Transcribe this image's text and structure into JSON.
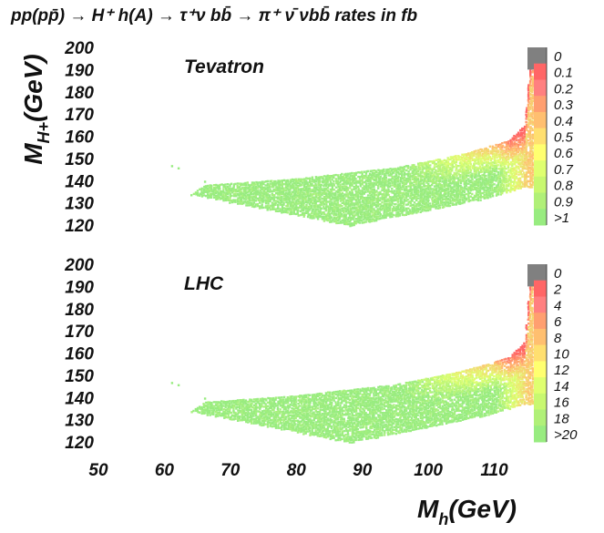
{
  "header": {
    "title": "pp(pp̄) → H⁺ h(A) → τ⁺ν bb̄ → π⁺ ν̄ νbb̄ rates in fb"
  },
  "colors": {
    "overflow": "#808080",
    "scale": [
      "#ff6666",
      "#ff8080",
      "#ff9f70",
      "#ffbf70",
      "#ffdf70",
      "#ffff70",
      "#dfff70",
      "#c8f870",
      "#b0f078",
      "#98ec80"
    ]
  },
  "chart_data": [
    {
      "type": "scatter",
      "name": "Tevatron",
      "x_label": "",
      "y_label": "M_H+(GeV)",
      "xlim": [
        50,
        116
      ],
      "ylim": [
        120,
        200
      ],
      "yticks": [
        "200",
        "190",
        "180",
        "170",
        "160",
        "150",
        "140",
        "130",
        "120"
      ],
      "legend_labels": [
        "0",
        "0.1",
        "0.2",
        "0.3",
        "0.4",
        "0.5",
        "0.6",
        "0.7",
        "0.8",
        "0.9",
        ">1"
      ],
      "region": {
        "lower_edge": [
          [
            88,
            120
          ],
          [
            100,
            127
          ],
          [
            110,
            133
          ],
          [
            114,
            137
          ]
        ],
        "upper_edge": [
          [
            66,
            138
          ],
          [
            80,
            141
          ],
          [
            95,
            146
          ],
          [
            105,
            152
          ],
          [
            112,
            158
          ],
          [
            114.5,
            165
          ],
          [
            115.5,
            200
          ]
        ],
        "left_tip": [
          64,
          134
        ],
        "right_edge_x": 116
      }
    },
    {
      "type": "scatter",
      "name": "LHC",
      "x_label": "M_h(GeV)",
      "y_label": "",
      "xlim": [
        50,
        116
      ],
      "ylim": [
        120,
        200
      ],
      "xticks": [
        "50",
        "60",
        "70",
        "80",
        "90",
        "100",
        "110"
      ],
      "yticks": [
        "200",
        "190",
        "180",
        "170",
        "160",
        "150",
        "140",
        "130",
        "120"
      ],
      "legend_labels": [
        "0",
        "2",
        "4",
        "6",
        "8",
        "10",
        "12",
        "14",
        "16",
        "18",
        ">20"
      ],
      "region": {
        "lower_edge": [
          [
            88,
            120
          ],
          [
            100,
            127
          ],
          [
            110,
            133
          ],
          [
            114,
            137
          ]
        ],
        "upper_edge": [
          [
            66,
            138
          ],
          [
            80,
            141
          ],
          [
            95,
            146
          ],
          [
            105,
            152
          ],
          [
            112,
            158
          ],
          [
            114.5,
            165
          ],
          [
            115.5,
            200
          ]
        ],
        "left_tip": [
          64,
          134
        ],
        "right_edge_x": 116
      }
    }
  ]
}
